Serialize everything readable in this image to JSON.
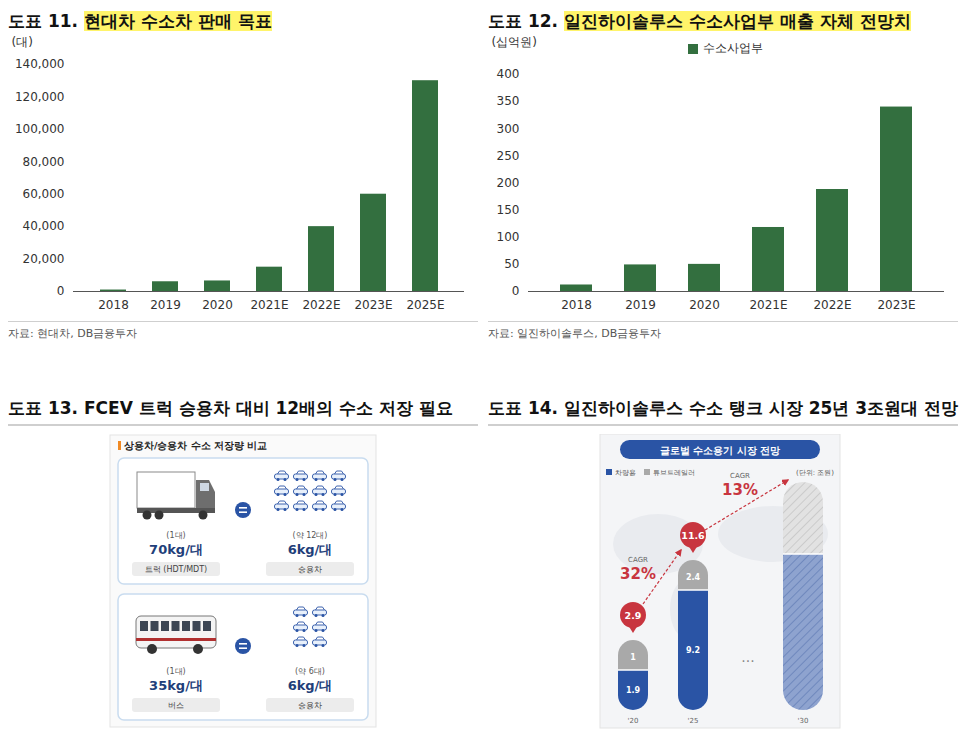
{
  "chart_data": [
    {
      "type": "bar",
      "title": "도표 11. 현대차 수소차 판매 목표",
      "y_label": "(대)",
      "categories": [
        "2018",
        "2019",
        "2020",
        "2021E",
        "2022E",
        "2023E",
        "2025E"
      ],
      "values": [
        900,
        6000,
        6500,
        15000,
        40000,
        60000,
        130000
      ],
      "color": "#336f3f",
      "ylim": [
        0,
        140000
      ],
      "yticks": [
        0,
        {
          "value": 20000,
          "label": "20,000"
        },
        {
          "value": 40000,
          "label": "40,000"
        },
        {
          "value": 60000,
          "label": "60,000"
        },
        {
          "value": 80000,
          "label": "80,000"
        },
        {
          "value": 100000,
          "label": "100,000"
        },
        {
          "value": 120000,
          "label": "120,000"
        },
        {
          "value": 140000,
          "label": "140,000"
        }
      ],
      "grid": false,
      "source": "자료: 현대차, DB금융투자"
    },
    {
      "type": "bar",
      "title": "도표 12. 일진하이솔루스 수소사업부 매출 자체 전망치",
      "y_label": "(십억원)",
      "categories": [
        "2018",
        "2019",
        "2020",
        "2021E",
        "2022E",
        "2023E"
      ],
      "series": [
        {
          "name": "수소사업부",
          "color": "#336f3f",
          "values": [
            12,
            49,
            50,
            118,
            188,
            340
          ]
        }
      ],
      "legend": "top",
      "ylim": [
        0,
        400
      ],
      "yticks": [
        0,
        50,
        100,
        150,
        200,
        250,
        300,
        350,
        400
      ],
      "grid": false,
      "source": "자료: 일진하이솔루스, DB금융투자"
    }
  ],
  "diagrams": {
    "panel13": {
      "title": "도표 13. FCEV 트럭 승용차 대비 12배의 수소 저장 필요",
      "heading": "상용차/승용차 수소 저장량 비교",
      "rows": [
        {
          "left": {
            "count": "(1대)",
            "storage": "70kg/대",
            "label": "트럭 (HDT/MDT)"
          },
          "right": {
            "count": "(약 12대)",
            "storage": "6kg/대",
            "label": "승용차",
            "car_icons": 12
          }
        },
        {
          "left": {
            "count": "(1대)",
            "storage": "35kg/대",
            "label": "버스"
          },
          "right": {
            "count": "(약 6대)",
            "storage": "6kg/대",
            "label": "승용차",
            "car_icons": 6
          }
        }
      ]
    },
    "panel14": {
      "title": "도표 14. 일진하이솔루스 수소 탱크 시장 25년 3조원대 전망",
      "heading": "글로벌 수소용기 시장 전망",
      "legend_items": [
        "차량용",
        "튜브트레일러"
      ],
      "unit": "(단위: 조원)",
      "years": [
        {
          "label": "'20",
          "segments": [
            1.9,
            1
          ],
          "total": 2.9
        },
        {
          "label": "'25",
          "segments": [
            9.2,
            2.4
          ],
          "total": 11.6
        },
        {
          "label": "'30"
        }
      ],
      "growth": [
        {
          "label": "CAGR",
          "value": "32%"
        },
        {
          "label": "CAGR",
          "value": "13%"
        }
      ],
      "ellipsis": "···"
    }
  }
}
